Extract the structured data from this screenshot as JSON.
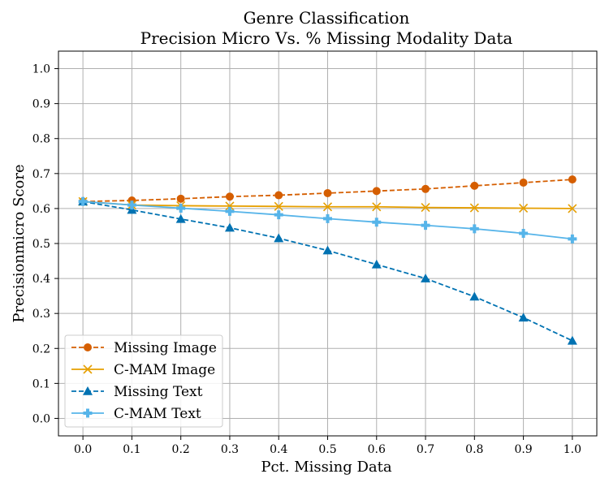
{
  "chart_data": {
    "type": "line",
    "title": "Genre Classification",
    "subtitle": "Precision Micro Vs. % Missing Modality Data",
    "xlabel": "Pct. Missing Data",
    "ylabel": "Precisionmicro Score",
    "x": [
      0.0,
      0.1,
      0.2,
      0.3,
      0.4,
      0.5,
      0.6,
      0.7,
      0.8,
      0.9,
      1.0
    ],
    "xlim": [
      -0.05,
      1.05
    ],
    "ylim": [
      -0.05,
      1.05
    ],
    "xticks": [
      "0.0",
      "0.1",
      "0.2",
      "0.3",
      "0.4",
      "0.5",
      "0.6",
      "0.7",
      "0.8",
      "0.9",
      "1.0"
    ],
    "yticks": [
      "0.0",
      "0.1",
      "0.2",
      "0.3",
      "0.4",
      "0.5",
      "0.6",
      "0.7",
      "0.8",
      "0.9",
      "1.0"
    ],
    "grid": true,
    "legend_position": "lower-left",
    "series": [
      {
        "name": "Missing Image",
        "color": "#d55e00",
        "dash": "dashed",
        "marker": "circle",
        "values": [
          0.62,
          0.623,
          0.628,
          0.634,
          0.638,
          0.644,
          0.65,
          0.656,
          0.665,
          0.674,
          0.683
        ]
      },
      {
        "name": "C-MAM Image",
        "color": "#e69f00",
        "dash": "solid",
        "marker": "x",
        "values": [
          0.62,
          0.61,
          0.608,
          0.607,
          0.606,
          0.605,
          0.605,
          0.603,
          0.602,
          0.601,
          0.6
        ]
      },
      {
        "name": "Missing Text",
        "color": "#0072b2",
        "dash": "dashed",
        "marker": "triangle",
        "values": [
          0.62,
          0.596,
          0.57,
          0.545,
          0.515,
          0.48,
          0.44,
          0.4,
          0.348,
          0.288,
          0.222
        ]
      },
      {
        "name": "C-MAM Text",
        "color": "#56b4e9",
        "dash": "solid",
        "marker": "plus",
        "values": [
          0.62,
          0.61,
          0.601,
          0.592,
          0.582,
          0.571,
          0.561,
          0.552,
          0.542,
          0.529,
          0.513
        ]
      }
    ]
  }
}
